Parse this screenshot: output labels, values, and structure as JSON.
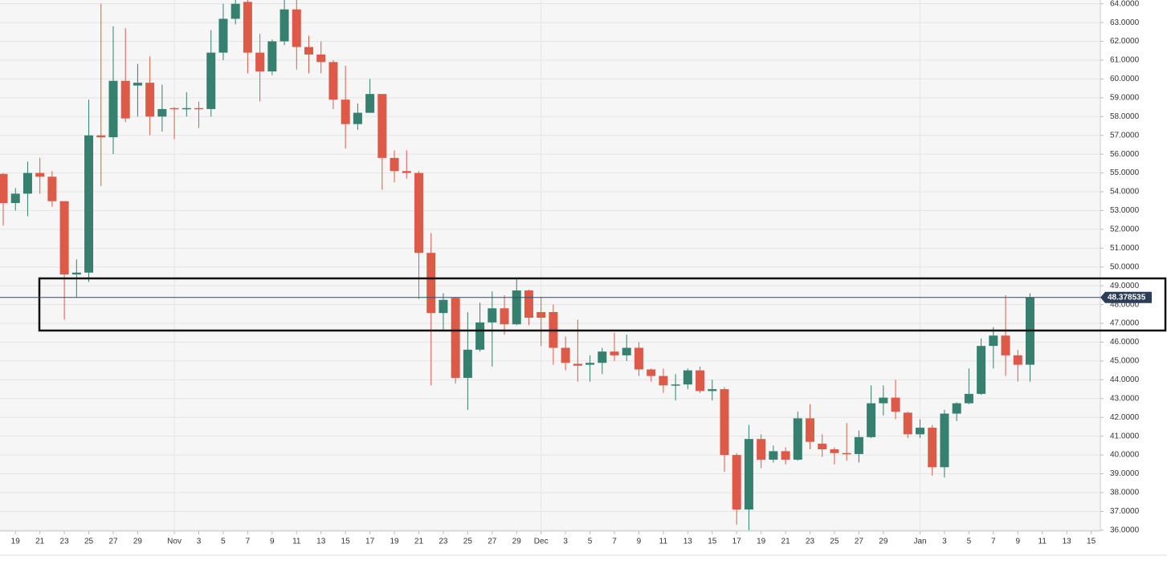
{
  "chart_data": {
    "type": "candlestick",
    "categories": [
      null,
      "19",
      null,
      "21",
      null,
      "23",
      null,
      "25",
      null,
      "27",
      null,
      "29",
      null,
      null,
      "Nov",
      null,
      "3",
      null,
      "5",
      null,
      "7",
      null,
      "9",
      null,
      "11",
      null,
      "13",
      null,
      "15",
      null,
      "17",
      null,
      "19",
      null,
      "21",
      null,
      "23",
      null,
      "25",
      null,
      "27",
      null,
      "29",
      null,
      "Dec",
      null,
      "3",
      null,
      "5",
      null,
      "7",
      null,
      "9",
      null,
      "11",
      null,
      "13",
      null,
      "15",
      null,
      "17",
      null,
      "19",
      null,
      "21",
      null,
      "23",
      null,
      "25",
      null,
      "27",
      null,
      "29",
      null,
      null,
      "Jan",
      null,
      "3",
      null,
      "5",
      null,
      "7",
      null,
      "9",
      null,
      "11",
      null,
      "13",
      null,
      "15"
    ],
    "open": [
      54.95,
      53.4,
      53.9,
      55.0,
      54.8,
      53.5,
      49.6,
      49.7,
      57.0,
      56.9,
      59.9,
      59.65,
      59.8,
      58.0,
      58.45,
      58.4,
      58.45,
      58.4,
      61.4,
      63.2,
      64.1,
      61.4,
      60.4,
      62.0,
      63.7,
      61.7,
      61.3,
      60.9,
      58.9,
      57.6,
      58.2,
      59.2,
      55.8,
      55.1,
      55.0,
      50.75,
      47.55,
      48.35,
      44.1,
      45.6,
      47.05,
      47.8,
      46.95,
      48.75,
      47.6,
      47.6,
      45.7,
      44.85,
      44.8,
      44.9,
      45.5,
      45.3,
      45.7,
      44.55,
      44.2,
      43.7,
      43.75,
      44.5,
      43.4,
      43.5,
      40.0,
      37.1,
      40.85,
      39.75,
      40.2,
      39.75,
      41.95,
      40.6,
      40.3,
      40.1,
      40.05,
      40.95,
      42.75,
      43.05,
      42.25,
      41.1,
      41.45,
      39.35,
      42.2,
      42.75,
      43.25,
      45.8,
      46.35,
      45.3,
      44.8,
      null,
      null,
      null,
      null,
      null
    ],
    "high": [
      55.0,
      54.2,
      55.6,
      55.8,
      55.1,
      53.5,
      50.4,
      58.9,
      64.0,
      62.8,
      62.7,
      60.8,
      61.2,
      59.7,
      58.5,
      59.3,
      58.8,
      62.6,
      64.0,
      64.2,
      64.2,
      62.4,
      62.1,
      64.2,
      64.2,
      62.3,
      62.0,
      61.0,
      60.7,
      58.7,
      60.0,
      59.2,
      56.2,
      56.2,
      55.1,
      51.8,
      48.6,
      48.4,
      47.6,
      48.1,
      48.7,
      48.5,
      49.4,
      48.8,
      48.4,
      48.0,
      46.3,
      47.2,
      45.3,
      45.7,
      46.5,
      46.4,
      46.0,
      44.6,
      44.6,
      44.3,
      44.6,
      44.7,
      44.0,
      43.6,
      40.1,
      41.6,
      41.1,
      40.5,
      40.4,
      42.3,
      42.7,
      41.1,
      40.4,
      41.7,
      41.3,
      43.7,
      43.7,
      44.0,
      42.3,
      41.9,
      41.6,
      42.4,
      42.8,
      44.6,
      46.2,
      46.8,
      48.5,
      45.6,
      48.6,
      null,
      null,
      null,
      null,
      null
    ],
    "low": [
      52.2,
      53.0,
      52.7,
      53.9,
      53.2,
      47.2,
      48.4,
      49.2,
      54.3,
      56.0,
      57.7,
      58.0,
      57.0,
      57.2,
      56.8,
      58.0,
      57.4,
      58.0,
      61.0,
      62.9,
      60.3,
      58.8,
      60.2,
      61.8,
      60.5,
      60.3,
      60.3,
      58.4,
      56.3,
      57.3,
      58.2,
      54.1,
      54.5,
      54.7,
      48.3,
      43.7,
      46.6,
      43.8,
      42.4,
      45.5,
      44.7,
      46.4,
      46.9,
      46.9,
      45.8,
      44.8,
      44.5,
      43.9,
      43.9,
      44.3,
      45.0,
      45.0,
      44.2,
      43.9,
      43.3,
      42.9,
      43.5,
      43.3,
      42.9,
      39.1,
      36.3,
      36.0,
      39.3,
      39.6,
      39.5,
      39.7,
      40.3,
      39.9,
      39.5,
      39.7,
      39.6,
      40.9,
      42.1,
      41.9,
      40.9,
      40.9,
      38.9,
      38.8,
      41.8,
      42.7,
      43.2,
      44.6,
      44.2,
      43.9,
      43.9,
      null,
      null,
      null,
      null,
      null
    ],
    "close": [
      53.4,
      53.9,
      55.0,
      54.8,
      53.5,
      49.6,
      49.7,
      57.0,
      56.9,
      59.9,
      57.9,
      59.8,
      58.0,
      58.4,
      58.4,
      58.45,
      58.4,
      61.4,
      63.2,
      64.0,
      61.4,
      60.4,
      62.0,
      63.7,
      61.7,
      61.3,
      60.9,
      58.9,
      57.6,
      58.2,
      59.2,
      55.8,
      55.1,
      55.0,
      50.75,
      47.55,
      48.25,
      44.1,
      45.6,
      47.05,
      47.8,
      46.95,
      48.75,
      47.3,
      47.3,
      45.7,
      44.9,
      44.75,
      44.9,
      45.5,
      45.3,
      45.7,
      44.55,
      44.2,
      43.7,
      43.75,
      44.5,
      43.4,
      43.5,
      40.0,
      37.1,
      40.85,
      39.75,
      40.2,
      39.75,
      41.95,
      40.7,
      40.3,
      40.1,
      40.05,
      40.95,
      42.75,
      43.05,
      42.3,
      41.1,
      41.45,
      39.35,
      42.2,
      42.75,
      43.25,
      45.8,
      46.35,
      45.3,
      44.8,
      48.38,
      null,
      null,
      null,
      null,
      null
    ],
    "up_color": "#35806e",
    "down_color": "#dd5a48",
    "last_price": 48.378535,
    "ylim": [
      35.95,
      64.2
    ],
    "yticks": [
      {
        "value": 36,
        "label": "36.0000"
      },
      {
        "value": 37,
        "label": "37.0000"
      },
      {
        "value": 38,
        "label": "38.0000"
      },
      {
        "value": 39,
        "label": "39.0000"
      },
      {
        "value": 40,
        "label": "40.0000"
      },
      {
        "value": 41,
        "label": "41.0000"
      },
      {
        "value": 42,
        "label": "42.0000"
      },
      {
        "value": 43,
        "label": "43.0000"
      },
      {
        "value": 44,
        "label": "44.0000"
      },
      {
        "value": 45,
        "label": "45.0000"
      },
      {
        "value": 46,
        "label": "46.0000"
      },
      {
        "value": 47,
        "label": "47.0000"
      },
      {
        "value": 48,
        "label": "48.0000"
      },
      {
        "value": 49,
        "label": "49.0000"
      },
      {
        "value": 50,
        "label": "50.0000"
      },
      {
        "value": 51,
        "label": "51.0000"
      },
      {
        "value": 52,
        "label": "52.0000"
      },
      {
        "value": 53,
        "label": "53.0000"
      },
      {
        "value": 54,
        "label": "54.0000"
      },
      {
        "value": 55,
        "label": "55.0000"
      },
      {
        "value": 56,
        "label": "56.0000"
      },
      {
        "value": 57,
        "label": "57.0000"
      },
      {
        "value": 58,
        "label": "58.0000"
      },
      {
        "value": 59,
        "label": "59.0000"
      },
      {
        "value": 60,
        "label": "60.0000"
      },
      {
        "value": 61,
        "label": "61.0000"
      },
      {
        "value": 62,
        "label": "62.0000"
      },
      {
        "value": 63,
        "label": "63.0000"
      },
      {
        "value": 64,
        "label": "64.0000"
      }
    ],
    "grid": true
  }
}
